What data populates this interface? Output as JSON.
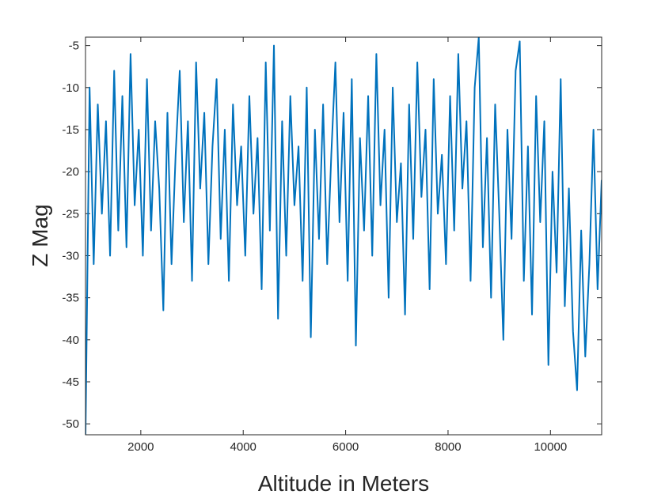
{
  "chart_data": {
    "type": "line",
    "xlabel": "Altitude in Meters",
    "ylabel": "Z Mag",
    "xlim": [
      920,
      11000
    ],
    "ylim": [
      -51.3,
      -4
    ],
    "xticks": [
      2000,
      4000,
      6000,
      8000,
      10000
    ],
    "yticks": [
      -50,
      -45,
      -40,
      -35,
      -30,
      -25,
      -20,
      -15,
      -10,
      -5
    ],
    "grid": false,
    "series": [
      {
        "color": "#0072bd",
        "x": [
          920,
          1000,
          1080,
          1160,
          1240,
          1320,
          1400,
          1480,
          1560,
          1640,
          1720,
          1800,
          1880,
          1960,
          2040,
          2120,
          2200,
          2280,
          2360,
          2440,
          2520,
          2600,
          2680,
          2760,
          2840,
          2920,
          3000,
          3080,
          3160,
          3240,
          3320,
          3400,
          3480,
          3560,
          3640,
          3720,
          3800,
          3880,
          3960,
          4040,
          4120,
          4200,
          4280,
          4360,
          4440,
          4520,
          4600,
          4680,
          4760,
          4840,
          4920,
          5000,
          5080,
          5160,
          5240,
          5320,
          5400,
          5480,
          5560,
          5640,
          5720,
          5800,
          5880,
          5960,
          6040,
          6120,
          6200,
          6280,
          6360,
          6440,
          6520,
          6600,
          6680,
          6760,
          6840,
          6920,
          7000,
          7080,
          7160,
          7240,
          7320,
          7400,
          7480,
          7560,
          7640,
          7720,
          7800,
          7880,
          7960,
          8040,
          8120,
          8200,
          8280,
          8360,
          8440,
          8520,
          8600,
          8680,
          8760,
          8840,
          8920,
          9000,
          9080,
          9160,
          9240,
          9320,
          9400,
          9480,
          9560,
          9640,
          9720,
          9800,
          9880,
          9960,
          10040,
          10120,
          10200,
          10280,
          10360,
          10440,
          10520,
          10600,
          10680,
          10760,
          10840,
          10920,
          11000
        ],
        "values": [
          -51.3,
          -10,
          -31,
          -12,
          -25,
          -14,
          -30,
          -8,
          -27,
          -11,
          -29,
          -6,
          -24,
          -15,
          -30,
          -9,
          -27,
          -14,
          -22,
          -36.5,
          -13,
          -31,
          -18,
          -8,
          -26,
          -14,
          -33,
          -7,
          -22,
          -13,
          -31,
          -17,
          -9,
          -28,
          -15,
          -33,
          -12,
          -24,
          -17,
          -30,
          -11,
          -25,
          -16,
          -34,
          -7,
          -27,
          -5,
          -37.5,
          -14,
          -30,
          -11,
          -24,
          -17,
          -33,
          -10,
          -39.7,
          -15,
          -28,
          -12,
          -31,
          -18,
          -7,
          -26,
          -13,
          -33,
          -9,
          -40.7,
          -16,
          -27,
          -11,
          -30,
          -6,
          -24,
          -15,
          -35,
          -10,
          -26,
          -19,
          -37,
          -12,
          -28,
          -7,
          -23,
          -15,
          -34,
          -9,
          -25,
          -18,
          -31,
          -11,
          -27,
          -6,
          -22,
          -14,
          -33,
          -10,
          -4,
          -29,
          -16,
          -35,
          -12,
          -25,
          -40,
          -15,
          -28,
          -8,
          -4.5,
          -33,
          -17,
          -37,
          -11,
          -26,
          -14,
          -43,
          -20,
          -32,
          -9,
          -36,
          -22,
          -39,
          -46,
          -27,
          -42,
          -31,
          -15,
          -34,
          -21
        ]
      }
    ]
  }
}
